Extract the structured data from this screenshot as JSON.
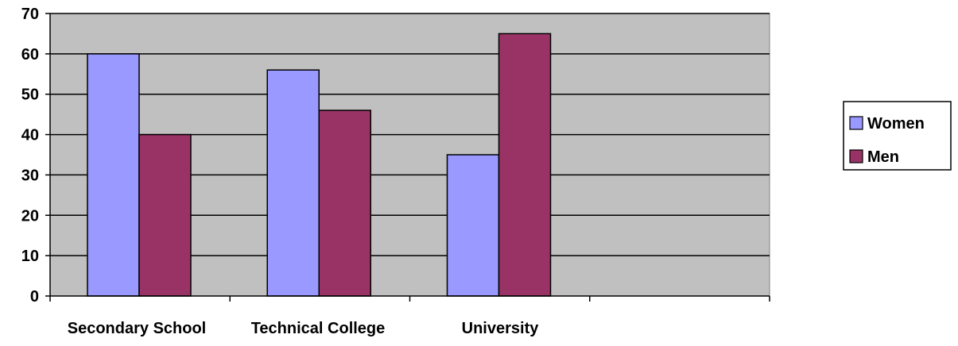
{
  "chart_data": {
    "type": "bar",
    "categories": [
      "Secondary School",
      "Technical College",
      "University",
      ""
    ],
    "series": [
      {
        "name": "Women",
        "values": [
          60,
          56,
          35,
          null
        ],
        "color": "#9999ff"
      },
      {
        "name": "Men",
        "values": [
          40,
          46,
          65,
          null
        ],
        "color": "#993366"
      }
    ],
    "ylim": [
      0,
      70
    ],
    "yticks": [
      0,
      10,
      20,
      30,
      40,
      50,
      60,
      70
    ],
    "grid": true,
    "plot_background": "#c0c0c0",
    "legend_position": "right",
    "title": "",
    "xlabel": "",
    "ylabel": ""
  }
}
